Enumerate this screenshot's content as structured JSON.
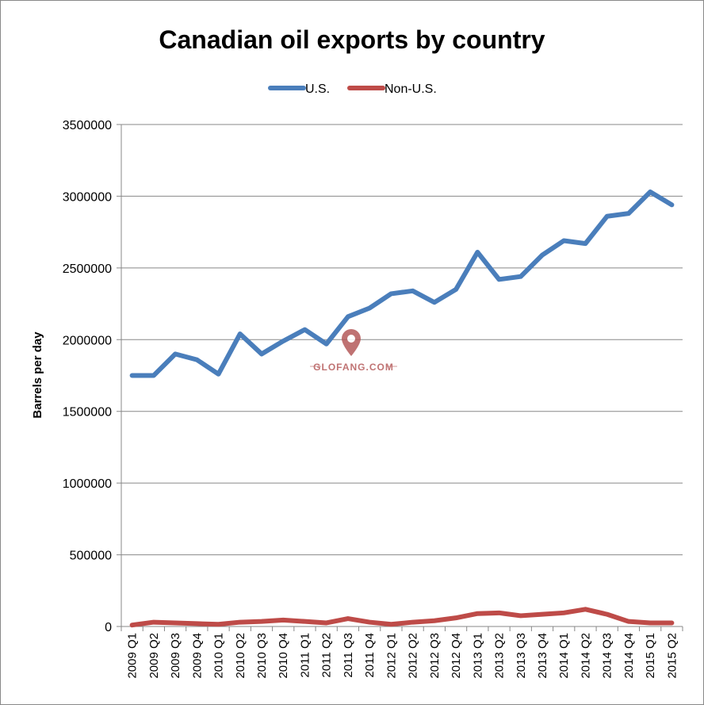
{
  "chart_data": {
    "type": "line",
    "title": "Canadian oil exports by country",
    "xlabel": "",
    "ylabel": "Barrels per day",
    "ylim": [
      0,
      3500000
    ],
    "yticks": [
      0,
      500000,
      1000000,
      1500000,
      2000000,
      2500000,
      3000000,
      3500000
    ],
    "grid": true,
    "legend_position": "top-center",
    "categories": [
      "2009 Q1",
      "2009 Q2",
      "2009 Q3",
      "2009 Q4",
      "2010 Q1",
      "2010 Q2",
      "2010 Q3",
      "2010 Q4",
      "2011 Q1",
      "2011 Q2",
      "2011 Q3",
      "2011 Q4",
      "2012 Q1",
      "2012 Q2",
      "2012 Q3",
      "2012 Q4",
      "2013 Q1",
      "2013 Q2",
      "2013 Q3",
      "2013 Q4",
      "2014 Q1",
      "2014 Q2",
      "2014 Q3",
      "2014 Q4",
      "2015 Q1",
      "2015 Q2"
    ],
    "series": [
      {
        "name": "U.S.",
        "color": "#4a7ebb",
        "values": [
          1750000,
          1750000,
          1900000,
          1860000,
          1760000,
          2040000,
          1900000,
          1990000,
          2070000,
          1970000,
          2160000,
          2220000,
          2320000,
          2340000,
          2260000,
          2350000,
          2610000,
          2420000,
          2440000,
          2590000,
          2690000,
          2670000,
          2860000,
          2880000,
          3030000,
          2940000
        ]
      },
      {
        "name": "Non-U.S.",
        "color": "#be4b48",
        "values": [
          10000,
          30000,
          25000,
          20000,
          15000,
          30000,
          35000,
          45000,
          35000,
          25000,
          55000,
          30000,
          15000,
          30000,
          40000,
          60000,
          90000,
          95000,
          75000,
          85000,
          95000,
          120000,
          85000,
          35000,
          25000,
          25000
        ]
      }
    ]
  },
  "watermark": "GLOFANG.COM"
}
